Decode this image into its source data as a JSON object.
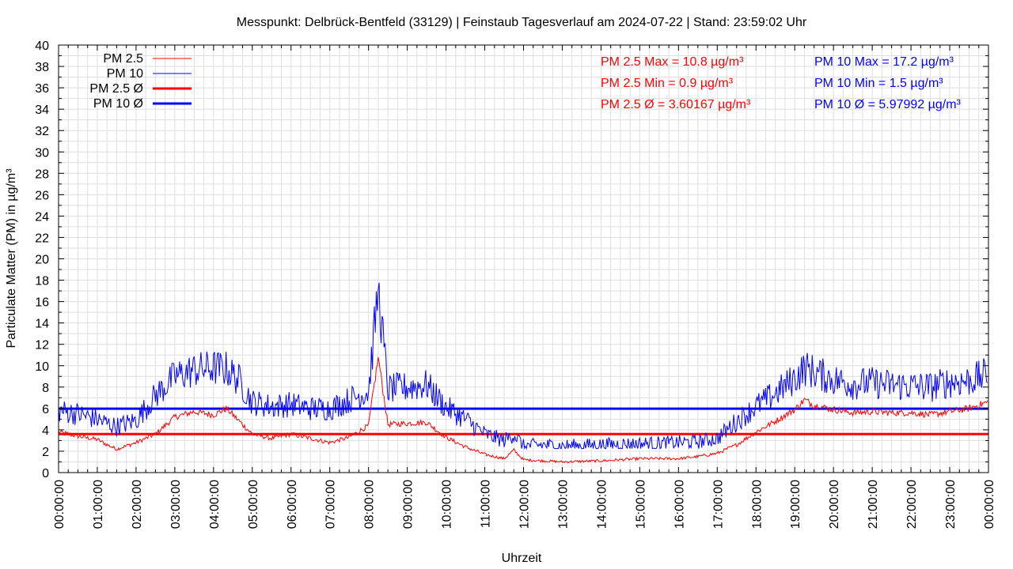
{
  "chart_data": {
    "type": "line",
    "title": "Messpunkt: Delbrück-Bentfeld (33129) | Feinstaub Tagesverlauf am 2024-07-22 | Stand: 23:59:02 Uhr",
    "xlabel": "Uhrzeit",
    "ylabel": "Particulate Matter (PM) in µg/m³",
    "xlim": [
      "00:00:00",
      "24:00:00"
    ],
    "ylim": [
      0,
      40
    ],
    "grid": true,
    "legend_position": "top-left",
    "x_tick_labels": [
      "00:00:00",
      "01:00:00",
      "02:00:00",
      "03:00:00",
      "04:00:00",
      "05:00:00",
      "06:00:00",
      "07:00:00",
      "08:00:00",
      "09:00:00",
      "10:00:00",
      "11:00:00",
      "12:00:00",
      "13:00:00",
      "14:00:00",
      "15:00:00",
      "16:00:00",
      "17:00:00",
      "18:00:00",
      "19:00:00",
      "20:00:00",
      "21:00:00",
      "22:00:00",
      "23:00:00",
      "00:00:00"
    ],
    "y_tick_labels": [
      "0",
      "2",
      "4",
      "6",
      "8",
      "10",
      "12",
      "14",
      "16",
      "18",
      "20",
      "22",
      "24",
      "26",
      "28",
      "30",
      "32",
      "34",
      "36",
      "38",
      "40"
    ],
    "series": [
      {
        "name": "PM 2.5",
        "color": "#ff0000",
        "x": [
          "00:00",
          "00:30",
          "01:00",
          "01:15",
          "01:30",
          "02:00",
          "02:30",
          "03:00",
          "03:30",
          "04:00",
          "04:20",
          "04:40",
          "05:00",
          "05:30",
          "06:00",
          "06:30",
          "07:00",
          "07:30",
          "08:00",
          "08:15",
          "08:30",
          "09:00",
          "09:30",
          "10:00",
          "10:30",
          "11:00",
          "11:30",
          "11:45",
          "12:00",
          "12:30",
          "13:00",
          "14:00",
          "15:00",
          "16:00",
          "16:30",
          "17:00",
          "17:30",
          "18:00",
          "18:30",
          "19:00",
          "19:15",
          "19:30",
          "20:00",
          "20:30",
          "21:00",
          "21:30",
          "22:00",
          "22:30",
          "23:00",
          "23:30",
          "23:59"
        ],
        "y": [
          3.8,
          3.4,
          3.1,
          2.6,
          2.2,
          2.8,
          3.6,
          5.2,
          5.7,
          5.4,
          6.0,
          4.8,
          3.6,
          3.2,
          3.6,
          3.2,
          2.8,
          3.3,
          4.4,
          10.8,
          4.5,
          4.6,
          4.7,
          3.3,
          2.4,
          1.7,
          1.3,
          2.1,
          1.2,
          1.1,
          1.0,
          1.1,
          1.3,
          1.3,
          1.5,
          1.8,
          2.6,
          3.8,
          4.8,
          5.9,
          6.8,
          6.3,
          5.9,
          5.6,
          5.7,
          5.6,
          5.6,
          5.4,
          5.7,
          6.0,
          6.6
        ]
      },
      {
        "name": "PM 10",
        "color": "#0000ff",
        "x": [
          "00:00",
          "00:30",
          "01:00",
          "01:15",
          "01:30",
          "02:00",
          "02:30",
          "03:00",
          "03:30",
          "04:00",
          "04:20",
          "04:40",
          "05:00",
          "05:30",
          "06:00",
          "06:30",
          "07:00",
          "07:30",
          "08:00",
          "08:15",
          "08:30",
          "09:00",
          "09:30",
          "10:00",
          "10:30",
          "11:00",
          "11:30",
          "11:45",
          "12:00",
          "12:30",
          "13:00",
          "14:00",
          "15:00",
          "16:00",
          "16:30",
          "17:00",
          "17:30",
          "18:00",
          "18:30",
          "19:00",
          "19:15",
          "19:30",
          "20:00",
          "20:30",
          "21:00",
          "21:30",
          "22:00",
          "22:30",
          "23:00",
          "23:30",
          "23:59"
        ],
        "y": [
          5.8,
          5.5,
          5.0,
          4.6,
          4.3,
          4.9,
          7.2,
          9.0,
          9.6,
          9.8,
          9.7,
          8.6,
          6.6,
          6.2,
          6.4,
          6.0,
          6.0,
          6.8,
          7.6,
          17.2,
          7.8,
          8.0,
          8.2,
          6.1,
          5.0,
          3.6,
          3.0,
          3.6,
          2.5,
          2.6,
          2.5,
          2.6,
          2.7,
          2.8,
          2.9,
          3.2,
          4.8,
          6.2,
          7.4,
          8.8,
          9.8,
          9.4,
          8.7,
          8.3,
          8.4,
          8.2,
          8.1,
          8.0,
          8.5,
          8.6,
          9.2
        ]
      },
      {
        "name": "PM 2.5 Ø",
        "color": "#ff0000",
        "constant": 3.60167
      },
      {
        "name": "PM 10 Ø",
        "color": "#0000ff",
        "constant": 5.97992
      }
    ],
    "stats": {
      "pm25": [
        "PM 2.5 Max = 10.8 µg/m³",
        "PM 2.5 Min = 0.9 µg/m³",
        "PM 2.5 Ø = 3.60167 µg/m³"
      ],
      "pm10": [
        "PM 10 Max = 17.2 µg/m³",
        "PM 10 Min = 1.5 µg/m³",
        "PM 10 Ø = 5.97992 µg/m³"
      ]
    }
  }
}
